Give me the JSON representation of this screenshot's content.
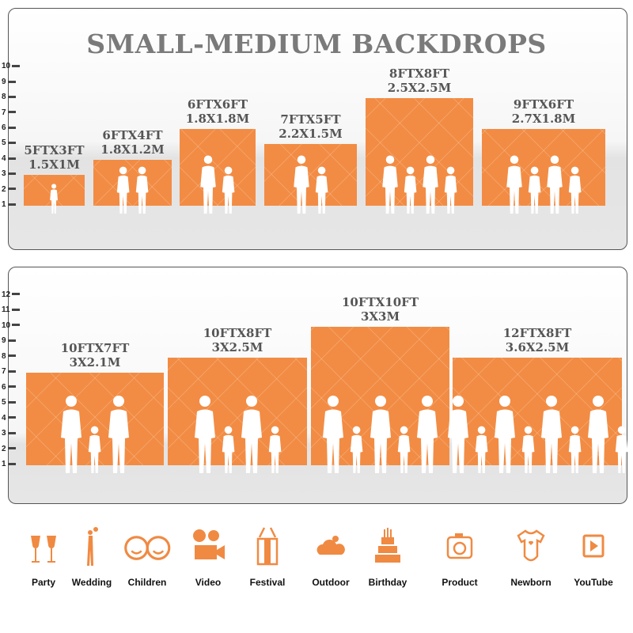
{
  "title": "SMALL-MEDIUM BACKDROPS",
  "accent_color": "#f28c44",
  "top_scale": [
    "1",
    "2",
    "3",
    "4",
    "5",
    "6",
    "7",
    "8",
    "9",
    "10"
  ],
  "bottom_scale": [
    "1",
    "2",
    "3",
    "4",
    "5",
    "6",
    "7",
    "8",
    "9",
    "10",
    "11",
    "12"
  ],
  "top_backdrops": [
    {
      "ft": "5FTX3FT",
      "m": "1.5X1M",
      "height_ft": 3,
      "figures": 1
    },
    {
      "ft": "6FTX4FT",
      "m": "1.8X1.2M",
      "height_ft": 4,
      "figures": 2
    },
    {
      "ft": "6FTX6FT",
      "m": "1.8X1.8M",
      "height_ft": 6,
      "figures": 2
    },
    {
      "ft": "7FTX5FT",
      "m": "2.2X1.5M",
      "height_ft": 5,
      "figures": 2
    },
    {
      "ft": "8FTX8FT",
      "m": "2.5X2.5M",
      "height_ft": 8,
      "figures": 4
    },
    {
      "ft": "9FTX6FT",
      "m": "2.7X1.8M",
      "height_ft": 6,
      "figures": 4
    }
  ],
  "bottom_backdrops": [
    {
      "ft": "10FTX7FT",
      "m": "3X2.1M",
      "height_ft": 7,
      "figures": 3
    },
    {
      "ft": "10FTX8FT",
      "m": "3X2.5M",
      "height_ft": 8,
      "figures": 4
    },
    {
      "ft": "10FTX10FT",
      "m": "3X3M",
      "height_ft": 10,
      "figures": 5
    },
    {
      "ft": "12FTX8FT",
      "m": "3.6X2.5M",
      "height_ft": 8,
      "figures": 8
    }
  ],
  "occasions": [
    {
      "label": "Party",
      "icon": "champagne-glasses-icon"
    },
    {
      "label": "Wedding",
      "icon": "wedding-couple-icon"
    },
    {
      "label": "Children",
      "icon": "children-faces-icon"
    },
    {
      "label": "Video",
      "icon": "movie-camera-icon"
    },
    {
      "label": "Festival",
      "icon": "gift-box-icon"
    },
    {
      "label": "Outdoor",
      "icon": "cloud-icon"
    },
    {
      "label": "Birthday",
      "icon": "birthday-cake-icon"
    },
    {
      "label": "Product",
      "icon": "camera-icon"
    },
    {
      "label": "Newborn",
      "icon": "baby-onesie-icon"
    },
    {
      "label": "YouTube",
      "icon": "play-button-icon"
    }
  ]
}
